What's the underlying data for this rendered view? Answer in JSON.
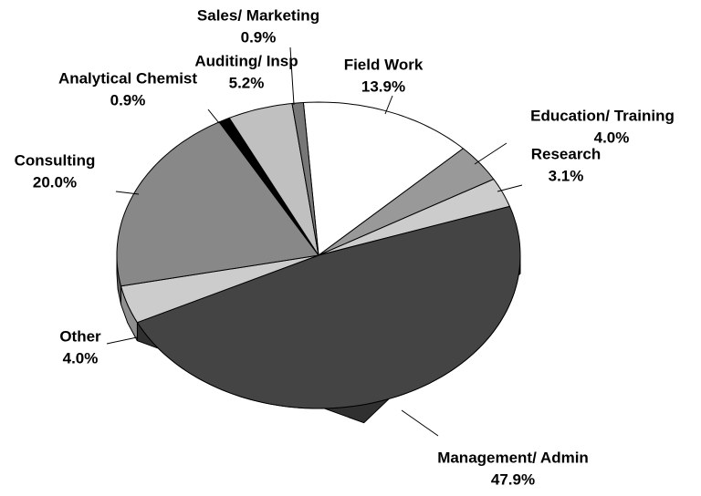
{
  "chart_data": {
    "type": "pie",
    "categories": [
      "Field Work",
      "Education/ Training",
      "Research",
      "Management/ Admin",
      "Other",
      "Consulting",
      "Analytical Chemist",
      "Auditing/ Insp",
      "Sales/ Marketing"
    ],
    "values": [
      13.9,
      4.0,
      3.1,
      47.9,
      4.0,
      20.0,
      0.9,
      5.2,
      0.9
    ],
    "value_labels": [
      "13.9%",
      "4.0%",
      "3.1%",
      "47.9%",
      "4.0%",
      "20.0%",
      "0.9%",
      "5.2%",
      "0.9%"
    ],
    "colors": [
      "#ffffff",
      "#999999",
      "#cccccc",
      "#444444",
      "#cccccc",
      "#888888",
      "#000000",
      "#c0c0c0",
      "#777777"
    ]
  }
}
